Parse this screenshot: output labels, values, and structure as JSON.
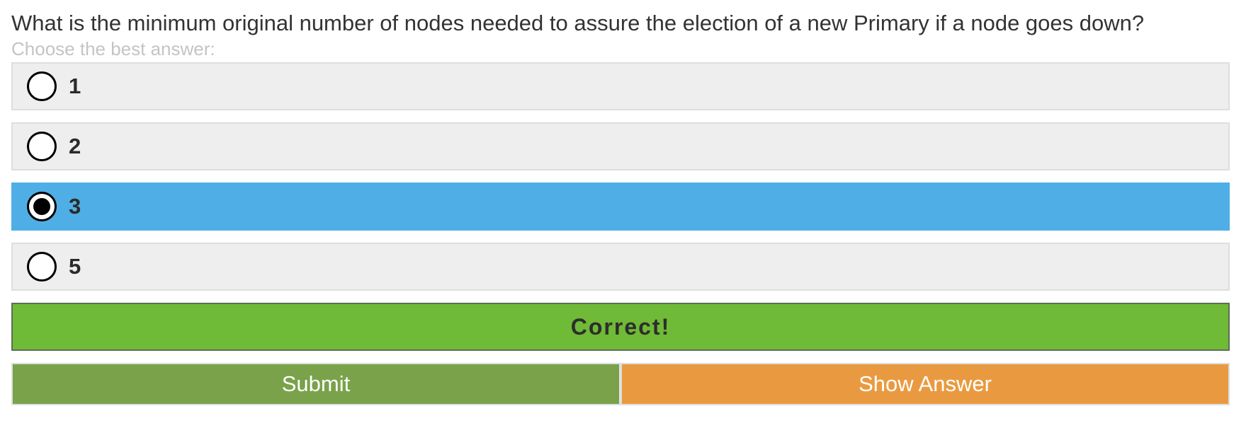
{
  "question": {
    "text": "What is the minimum original number of nodes needed to assure the election of a new Primary if a node goes down?",
    "hint": "Choose the best answer:"
  },
  "options": [
    {
      "label": "1",
      "selected": false
    },
    {
      "label": "2",
      "selected": false
    },
    {
      "label": "3",
      "selected": true
    },
    {
      "label": "5",
      "selected": false
    }
  ],
  "feedback": {
    "text": "Correct!",
    "color": "#6fba36"
  },
  "actions": {
    "submit_label": "Submit",
    "show_answer_label": "Show Answer"
  },
  "colors": {
    "selected_option": "#50aee6",
    "option_background": "#eeeeee",
    "submit_button": "#79a24a",
    "show_answer_button": "#e99a40"
  },
  "icons": {
    "radio_unselected": "radio-empty-icon",
    "radio_selected": "radio-filled-icon"
  }
}
